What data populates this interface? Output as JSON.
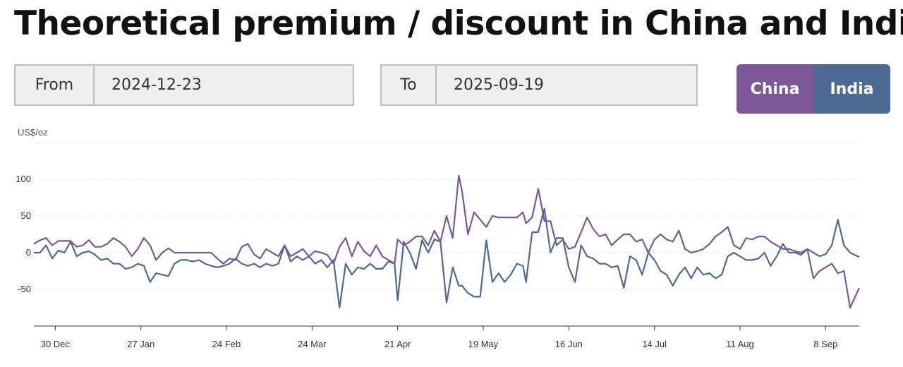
{
  "page": {
    "title": "Theoretical premium / discount in China and India"
  },
  "controls": {
    "from_label": "From",
    "from_value": "2024-12-23",
    "to_label": "To",
    "to_value": "2025-09-19",
    "toggle": [
      {
        "label": "China",
        "color": "#7b5797"
      },
      {
        "label": "India",
        "color": "#4d6b92"
      }
    ]
  },
  "chart_data": {
    "type": "line",
    "title": "",
    "ylabel": "US$/oz",
    "xlabel": "",
    "x_start": "2024-12-23",
    "x_end": "2025-09-19",
    "ylim": [
      -100,
      150
    ],
    "yticks": [
      -50,
      0,
      50,
      100
    ],
    "grid": true,
    "xticks": [
      {
        "date": "2024-12-30",
        "label": "30 Dec"
      },
      {
        "date": "2025-01-27",
        "label": "27 Jan"
      },
      {
        "date": "2025-02-24",
        "label": "24 Feb"
      },
      {
        "date": "2025-03-24",
        "label": "24 Mar"
      },
      {
        "date": "2025-04-21",
        "label": "21 Apr"
      },
      {
        "date": "2025-05-19",
        "label": "19 May"
      },
      {
        "date": "2025-06-16",
        "label": "16 Jun"
      },
      {
        "date": "2025-07-14",
        "label": "14 Jul"
      },
      {
        "date": "2025-08-11",
        "label": "11 Aug"
      },
      {
        "date": "2025-09-08",
        "label": "8 Sep"
      }
    ],
    "series": [
      {
        "name": "China",
        "color": "#7b5797",
        "points": [
          [
            "2024-12-23",
            12
          ],
          [
            "2024-12-25",
            17
          ],
          [
            "2024-12-27",
            20
          ],
          [
            "2024-12-29",
            10
          ],
          [
            "2024-12-31",
            16
          ],
          [
            "2025-01-02",
            16
          ],
          [
            "2025-01-04",
            16
          ],
          [
            "2025-01-06",
            8
          ],
          [
            "2025-01-08",
            10
          ],
          [
            "2025-01-10",
            17
          ],
          [
            "2025-01-12",
            8
          ],
          [
            "2025-01-14",
            8
          ],
          [
            "2025-01-16",
            12
          ],
          [
            "2025-01-18",
            20
          ],
          [
            "2025-01-20",
            15
          ],
          [
            "2025-01-22",
            8
          ],
          [
            "2025-01-24",
            -5
          ],
          [
            "2025-01-26",
            5
          ],
          [
            "2025-01-28",
            20
          ],
          [
            "2025-01-30",
            10
          ],
          [
            "2025-02-01",
            -10
          ],
          [
            "2025-02-03",
            0
          ],
          [
            "2025-02-05",
            6
          ],
          [
            "2025-02-07",
            0
          ],
          [
            "2025-02-09",
            0
          ],
          [
            "2025-02-11",
            0
          ],
          [
            "2025-02-13",
            0
          ],
          [
            "2025-02-15",
            0
          ],
          [
            "2025-02-17",
            0
          ],
          [
            "2025-02-19",
            0
          ],
          [
            "2025-02-21",
            -8
          ],
          [
            "2025-02-23",
            -15
          ],
          [
            "2025-02-25",
            -8
          ],
          [
            "2025-02-27",
            -10
          ],
          [
            "2025-03-01",
            8
          ],
          [
            "2025-03-03",
            12
          ],
          [
            "2025-03-05",
            -2
          ],
          [
            "2025-03-07",
            -8
          ],
          [
            "2025-03-09",
            5
          ],
          [
            "2025-03-11",
            0
          ],
          [
            "2025-03-13",
            -5
          ],
          [
            "2025-03-15",
            10
          ],
          [
            "2025-03-17",
            -5
          ],
          [
            "2025-03-19",
            0
          ],
          [
            "2025-03-21",
            5
          ],
          [
            "2025-03-23",
            -5
          ],
          [
            "2025-03-25",
            2
          ],
          [
            "2025-03-27",
            0
          ],
          [
            "2025-03-29",
            -3
          ],
          [
            "2025-03-31",
            -15
          ],
          [
            "2025-04-02",
            8
          ],
          [
            "2025-04-04",
            20
          ],
          [
            "2025-04-06",
            -5
          ],
          [
            "2025-04-08",
            15
          ],
          [
            "2025-04-10",
            2
          ],
          [
            "2025-04-12",
            -5
          ],
          [
            "2025-04-14",
            10
          ],
          [
            "2025-04-16",
            -5
          ],
          [
            "2025-04-18",
            -10
          ],
          [
            "2025-04-20",
            -15
          ],
          [
            "2025-04-21",
            18
          ],
          [
            "2025-04-23",
            10
          ],
          [
            "2025-04-25",
            15
          ],
          [
            "2025-04-27",
            22
          ],
          [
            "2025-04-29",
            22
          ],
          [
            "2025-05-01",
            10
          ],
          [
            "2025-05-03",
            30
          ],
          [
            "2025-05-05",
            15
          ],
          [
            "2025-05-07",
            50
          ],
          [
            "2025-05-09",
            20
          ],
          [
            "2025-05-11",
            105
          ],
          [
            "2025-05-12",
            85
          ],
          [
            "2025-05-14",
            25
          ],
          [
            "2025-05-16",
            55
          ],
          [
            "2025-05-18",
            45
          ],
          [
            "2025-05-20",
            35
          ],
          [
            "2025-05-22",
            50
          ],
          [
            "2025-05-24",
            48
          ],
          [
            "2025-05-26",
            48
          ],
          [
            "2025-05-28",
            48
          ],
          [
            "2025-05-30",
            48
          ],
          [
            "2025-06-01",
            55
          ],
          [
            "2025-06-02",
            40
          ],
          [
            "2025-06-04",
            48
          ],
          [
            "2025-06-06",
            87
          ],
          [
            "2025-06-08",
            43
          ],
          [
            "2025-06-10",
            43
          ],
          [
            "2025-06-12",
            10
          ],
          [
            "2025-06-14",
            18
          ],
          [
            "2025-06-16",
            5
          ],
          [
            "2025-06-18",
            8
          ],
          [
            "2025-06-20",
            28
          ],
          [
            "2025-06-22",
            48
          ],
          [
            "2025-06-24",
            32
          ],
          [
            "2025-06-26",
            22
          ],
          [
            "2025-06-28",
            25
          ],
          [
            "2025-06-30",
            10
          ],
          [
            "2025-07-02",
            18
          ],
          [
            "2025-07-04",
            25
          ],
          [
            "2025-07-06",
            25
          ],
          [
            "2025-07-08",
            15
          ],
          [
            "2025-07-10",
            18
          ],
          [
            "2025-07-12",
            0
          ],
          [
            "2025-07-14",
            18
          ],
          [
            "2025-07-16",
            25
          ],
          [
            "2025-07-18",
            18
          ],
          [
            "2025-07-20",
            15
          ],
          [
            "2025-07-22",
            30
          ],
          [
            "2025-07-24",
            5
          ],
          [
            "2025-07-26",
            0
          ],
          [
            "2025-07-28",
            2
          ],
          [
            "2025-07-30",
            5
          ],
          [
            "2025-08-01",
            12
          ],
          [
            "2025-08-03",
            22
          ],
          [
            "2025-08-05",
            28
          ],
          [
            "2025-08-07",
            35
          ],
          [
            "2025-08-09",
            10
          ],
          [
            "2025-08-11",
            5
          ],
          [
            "2025-08-13",
            20
          ],
          [
            "2025-08-15",
            18
          ],
          [
            "2025-08-17",
            22
          ],
          [
            "2025-08-19",
            22
          ],
          [
            "2025-08-21",
            15
          ],
          [
            "2025-08-23",
            10
          ],
          [
            "2025-08-25",
            5
          ],
          [
            "2025-08-27",
            5
          ],
          [
            "2025-08-29",
            2
          ],
          [
            "2025-08-31",
            0
          ],
          [
            "2025-09-02",
            5
          ],
          [
            "2025-09-04",
            -35
          ],
          [
            "2025-09-06",
            -25
          ],
          [
            "2025-09-08",
            -20
          ],
          [
            "2025-09-10",
            -15
          ],
          [
            "2025-09-12",
            -28
          ],
          [
            "2025-09-14",
            -25
          ],
          [
            "2025-09-16",
            -75
          ],
          [
            "2025-09-19",
            -48
          ]
        ]
      },
      {
        "name": "India",
        "color": "#4d6b92",
        "points": [
          [
            "2024-12-23",
            0
          ],
          [
            "2024-12-25",
            0
          ],
          [
            "2024-12-27",
            10
          ],
          [
            "2024-12-29",
            -8
          ],
          [
            "2024-12-31",
            3
          ],
          [
            "2025-01-02",
            0
          ],
          [
            "2025-01-04",
            15
          ],
          [
            "2025-01-06",
            -5
          ],
          [
            "2025-01-08",
            0
          ],
          [
            "2025-01-10",
            2
          ],
          [
            "2025-01-12",
            -3
          ],
          [
            "2025-01-14",
            -10
          ],
          [
            "2025-01-16",
            -8
          ],
          [
            "2025-01-18",
            -15
          ],
          [
            "2025-01-20",
            -15
          ],
          [
            "2025-01-22",
            -22
          ],
          [
            "2025-01-24",
            -20
          ],
          [
            "2025-01-26",
            -15
          ],
          [
            "2025-01-28",
            -18
          ],
          [
            "2025-01-30",
            -40
          ],
          [
            "2025-02-01",
            -28
          ],
          [
            "2025-02-03",
            -30
          ],
          [
            "2025-02-05",
            -32
          ],
          [
            "2025-02-07",
            -15
          ],
          [
            "2025-02-09",
            -10
          ],
          [
            "2025-02-11",
            -10
          ],
          [
            "2025-02-13",
            -12
          ],
          [
            "2025-02-15",
            -10
          ],
          [
            "2025-02-17",
            -15
          ],
          [
            "2025-02-19",
            -18
          ],
          [
            "2025-02-21",
            -20
          ],
          [
            "2025-02-23",
            -18
          ],
          [
            "2025-02-25",
            -15
          ],
          [
            "2025-02-27",
            -8
          ],
          [
            "2025-03-01",
            -15
          ],
          [
            "2025-03-03",
            -18
          ],
          [
            "2025-03-05",
            -15
          ],
          [
            "2025-03-07",
            -20
          ],
          [
            "2025-03-09",
            -15
          ],
          [
            "2025-03-11",
            -18
          ],
          [
            "2025-03-13",
            -15
          ],
          [
            "2025-03-15",
            10
          ],
          [
            "2025-03-17",
            -12
          ],
          [
            "2025-03-19",
            -5
          ],
          [
            "2025-03-21",
            -10
          ],
          [
            "2025-03-23",
            -5
          ],
          [
            "2025-03-25",
            -15
          ],
          [
            "2025-03-27",
            -10
          ],
          [
            "2025-03-29",
            -20
          ],
          [
            "2025-03-31",
            -10
          ],
          [
            "2025-04-02",
            -75
          ],
          [
            "2025-04-04",
            -15
          ],
          [
            "2025-04-06",
            -30
          ],
          [
            "2025-04-08",
            -20
          ],
          [
            "2025-04-10",
            -22
          ],
          [
            "2025-04-12",
            -15
          ],
          [
            "2025-04-14",
            -22
          ],
          [
            "2025-04-16",
            -22
          ],
          [
            "2025-04-18",
            -12
          ],
          [
            "2025-04-20",
            -15
          ],
          [
            "2025-04-21",
            -65
          ],
          [
            "2025-04-23",
            15
          ],
          [
            "2025-04-25",
            0
          ],
          [
            "2025-04-27",
            -22
          ],
          [
            "2025-04-29",
            17
          ],
          [
            "2025-05-01",
            0
          ],
          [
            "2025-05-03",
            18
          ],
          [
            "2025-05-05",
            15
          ],
          [
            "2025-05-07",
            -68
          ],
          [
            "2025-05-09",
            -20
          ],
          [
            "2025-05-11",
            -45
          ],
          [
            "2025-05-12",
            -45
          ],
          [
            "2025-05-14",
            -55
          ],
          [
            "2025-05-16",
            -60
          ],
          [
            "2025-05-18",
            -60
          ],
          [
            "2025-05-20",
            17
          ],
          [
            "2025-05-22",
            -40
          ],
          [
            "2025-05-24",
            -28
          ],
          [
            "2025-05-26",
            -40
          ],
          [
            "2025-05-28",
            -30
          ],
          [
            "2025-05-30",
            -15
          ],
          [
            "2025-06-01",
            -18
          ],
          [
            "2025-06-02",
            -40
          ],
          [
            "2025-06-04",
            28
          ],
          [
            "2025-06-06",
            28
          ],
          [
            "2025-06-08",
            60
          ],
          [
            "2025-06-10",
            0
          ],
          [
            "2025-06-12",
            20
          ],
          [
            "2025-06-14",
            20
          ],
          [
            "2025-06-16",
            -20
          ],
          [
            "2025-06-18",
            -40
          ],
          [
            "2025-06-20",
            10
          ],
          [
            "2025-06-22",
            -5
          ],
          [
            "2025-06-24",
            -8
          ],
          [
            "2025-06-26",
            -15
          ],
          [
            "2025-06-28",
            -15
          ],
          [
            "2025-06-30",
            -20
          ],
          [
            "2025-07-02",
            -18
          ],
          [
            "2025-07-04",
            -48
          ],
          [
            "2025-07-06",
            -5
          ],
          [
            "2025-07-08",
            -10
          ],
          [
            "2025-07-10",
            -30
          ],
          [
            "2025-07-12",
            0
          ],
          [
            "2025-07-14",
            -10
          ],
          [
            "2025-07-16",
            -25
          ],
          [
            "2025-07-18",
            -30
          ],
          [
            "2025-07-20",
            -45
          ],
          [
            "2025-07-22",
            -30
          ],
          [
            "2025-07-24",
            -20
          ],
          [
            "2025-07-26",
            -35
          ],
          [
            "2025-07-28",
            -20
          ],
          [
            "2025-07-30",
            -30
          ],
          [
            "2025-08-01",
            -28
          ],
          [
            "2025-08-03",
            -35
          ],
          [
            "2025-08-05",
            -30
          ],
          [
            "2025-08-07",
            -5
          ],
          [
            "2025-08-09",
            0
          ],
          [
            "2025-08-11",
            -5
          ],
          [
            "2025-08-13",
            -10
          ],
          [
            "2025-08-15",
            -10
          ],
          [
            "2025-08-17",
            -8
          ],
          [
            "2025-08-19",
            0
          ],
          [
            "2025-08-21",
            -18
          ],
          [
            "2025-08-23",
            -5
          ],
          [
            "2025-08-25",
            12
          ],
          [
            "2025-08-27",
            0
          ],
          [
            "2025-08-29",
            0
          ],
          [
            "2025-08-31",
            -3
          ],
          [
            "2025-09-02",
            5
          ],
          [
            "2025-09-04",
            0
          ],
          [
            "2025-09-06",
            -5
          ],
          [
            "2025-09-08",
            -2
          ],
          [
            "2025-09-10",
            10
          ],
          [
            "2025-09-12",
            45
          ],
          [
            "2025-09-14",
            10
          ],
          [
            "2025-09-16",
            0
          ],
          [
            "2025-09-19",
            -6
          ]
        ]
      }
    ]
  }
}
